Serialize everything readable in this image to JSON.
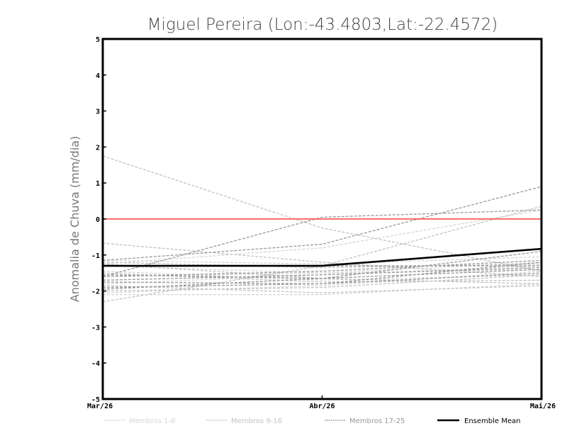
{
  "chart_data": {
    "type": "line",
    "title": "Miguel Pereira (Lon:-43.4803,Lat:-22.4572)",
    "xlabel": "",
    "ylabel": "Anomalia de Chuva (mm/dia)",
    "categories": [
      "Mar/26",
      "Abr/26",
      "Mai/26"
    ],
    "ylim": [
      -5,
      5
    ],
    "yticks": [
      "-5",
      "-4",
      "-3",
      "-2",
      "-1",
      "0",
      "1",
      "2",
      "3",
      "4",
      "5"
    ],
    "reference_line": {
      "value": 0,
      "color": "#ff4040"
    },
    "groups": [
      {
        "name": "Membros 1-8",
        "color": "#d6d6d6",
        "members": [
          [
            -1.25,
            -0.8,
            0.25
          ],
          [
            -1.6,
            -1.5,
            -1.2
          ],
          [
            -2.1,
            -2.1,
            -1.8
          ],
          [
            -1.3,
            -1.5,
            -1.4
          ],
          [
            -1.8,
            -1.55,
            -1.3
          ],
          [
            -1.45,
            -1.7,
            -1.55
          ],
          [
            -2.05,
            -1.85,
            -1.45
          ],
          [
            -1.15,
            -1.25,
            -1.05
          ]
        ]
      },
      {
        "name": "Membros 9-16",
        "color": "#c2c2c2",
        "members": [
          [
            1.75,
            -0.25,
            -1.45
          ],
          [
            -0.67,
            -1.2,
            -1.6
          ],
          [
            -2.3,
            -1.3,
            0.35
          ],
          [
            -1.25,
            -1.65,
            -1.8
          ],
          [
            -2.0,
            -1.9,
            -1.55
          ],
          [
            -1.2,
            -1.35,
            -1.25
          ],
          [
            -1.5,
            -1.75,
            -1.7
          ],
          [
            -1.85,
            -2.05,
            -1.85
          ]
        ]
      },
      {
        "name": "Membros 17-25",
        "color": "#999999",
        "members": [
          [
            -1.15,
            -0.7,
            0.9
          ],
          [
            -1.6,
            0.05,
            0.25
          ],
          [
            -1.75,
            -1.8,
            -1.2
          ],
          [
            -1.55,
            -1.65,
            -1.4
          ],
          [
            -1.95,
            -1.65,
            -0.9
          ],
          [
            -1.6,
            -1.45,
            -1.15
          ],
          [
            -1.9,
            -1.8,
            -1.5
          ],
          [
            -1.3,
            -1.3,
            -1.3
          ],
          [
            -1.7,
            -1.55,
            -1.35
          ]
        ]
      }
    ],
    "ensemble_mean": {
      "name": "Ensemble Mean",
      "color": "#000000",
      "values": [
        -1.3,
        -1.3,
        -0.83
      ]
    },
    "legend_position": "bottom",
    "grid": false
  }
}
